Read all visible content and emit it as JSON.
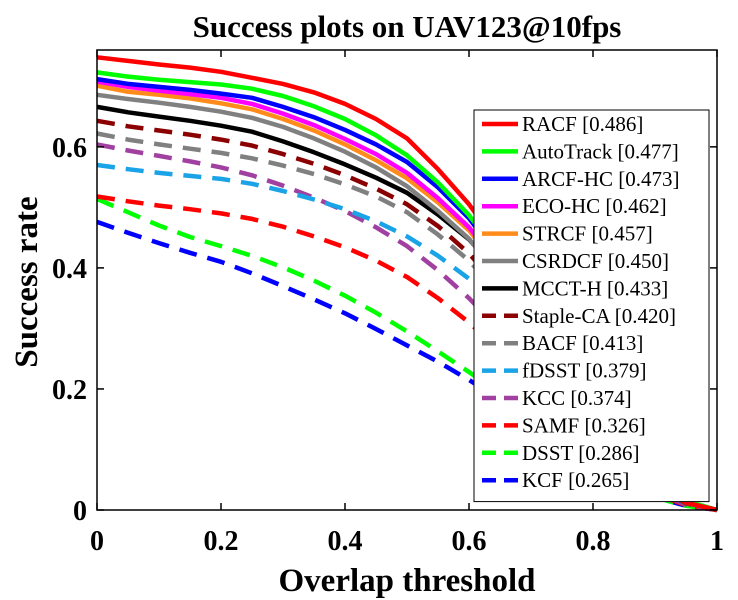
{
  "chart_data": {
    "type": "line",
    "title": "Success plots on UAV123@10fps",
    "xlabel": "Overlap threshold",
    "ylabel": "Success rate",
    "xlim": [
      0,
      1
    ],
    "ylim": [
      0,
      0.76
    ],
    "xticks": [
      {
        "value": 0,
        "label": "0"
      },
      {
        "value": 0.2,
        "label": "0.2"
      },
      {
        "value": 0.4,
        "label": "0.4"
      },
      {
        "value": 0.6,
        "label": "0.6"
      },
      {
        "value": 0.8,
        "label": "0.8"
      },
      {
        "value": 1,
        "label": "1"
      }
    ],
    "yticks": [
      {
        "value": 0,
        "label": "0"
      },
      {
        "value": 0.2,
        "label": "0.2"
      },
      {
        "value": 0.4,
        "label": "0.4"
      },
      {
        "value": 0.6,
        "label": "0.6"
      }
    ],
    "grid": false,
    "legend_position": "right",
    "x": [
      0,
      0.05,
      0.1,
      0.15,
      0.2,
      0.25,
      0.3,
      0.35,
      0.4,
      0.45,
      0.5,
      0.55,
      0.6,
      0.65,
      0.7,
      0.75,
      0.8,
      0.85,
      0.9,
      0.95,
      1.0
    ],
    "series": [
      {
        "name": "RACF [0.486]",
        "color": "#ff0000",
        "dash": "solid",
        "values": [
          0.748,
          0.742,
          0.736,
          0.731,
          0.724,
          0.714,
          0.704,
          0.69,
          0.671,
          0.646,
          0.614,
          0.563,
          0.505,
          0.435,
          0.35,
          0.26,
          0.17,
          0.095,
          0.04,
          0.012,
          0.0
        ]
      },
      {
        "name": "AutoTrack [0.477]",
        "color": "#00ff00",
        "dash": "solid",
        "values": [
          0.723,
          0.716,
          0.711,
          0.707,
          0.703,
          0.696,
          0.684,
          0.667,
          0.646,
          0.619,
          0.586,
          0.541,
          0.487,
          0.42,
          0.34,
          0.255,
          0.17,
          0.098,
          0.045,
          0.015,
          0.0
        ]
      },
      {
        "name": "ARCF-HC [0.473]",
        "color": "#0000ff",
        "dash": "solid",
        "values": [
          0.712,
          0.704,
          0.699,
          0.694,
          0.688,
          0.681,
          0.666,
          0.649,
          0.628,
          0.604,
          0.575,
          0.533,
          0.482,
          0.415,
          0.335,
          0.25,
          0.165,
          0.095,
          0.043,
          0.014,
          0.0
        ]
      },
      {
        "name": "ECO-HC [0.462]",
        "color": "#ff00ff",
        "dash": "solid",
        "values": [
          0.708,
          0.699,
          0.693,
          0.687,
          0.681,
          0.671,
          0.655,
          0.636,
          0.613,
          0.588,
          0.557,
          0.515,
          0.467,
          0.403,
          0.325,
          0.243,
          0.16,
          0.092,
          0.042,
          0.013,
          0.0
        ]
      },
      {
        "name": "STRCF [0.457]",
        "color": "#ff8c1a",
        "dash": "solid",
        "values": [
          0.701,
          0.691,
          0.686,
          0.68,
          0.672,
          0.662,
          0.646,
          0.627,
          0.604,
          0.578,
          0.548,
          0.508,
          0.462,
          0.398,
          0.32,
          0.238,
          0.157,
          0.09,
          0.04,
          0.013,
          0.0
        ]
      },
      {
        "name": "CSRDCF [0.450]",
        "color": "#808080",
        "dash": "solid",
        "values": [
          0.686,
          0.679,
          0.673,
          0.666,
          0.658,
          0.648,
          0.633,
          0.614,
          0.592,
          0.566,
          0.535,
          0.494,
          0.448,
          0.385,
          0.312,
          0.232,
          0.152,
          0.087,
          0.039,
          0.012,
          0.0
        ]
      },
      {
        "name": "MCCT-H [0.433]",
        "color": "#000000",
        "dash": "solid",
        "values": [
          0.666,
          0.657,
          0.65,
          0.643,
          0.635,
          0.625,
          0.609,
          0.591,
          0.571,
          0.549,
          0.524,
          0.488,
          0.447,
          0.39,
          0.318,
          0.238,
          0.158,
          0.09,
          0.04,
          0.012,
          0.0
        ]
      },
      {
        "name": "Staple-CA [0.420]",
        "color": "#8b0000",
        "dash": "dashed",
        "values": [
          0.643,
          0.634,
          0.627,
          0.62,
          0.612,
          0.602,
          0.588,
          0.572,
          0.553,
          0.531,
          0.505,
          0.469,
          0.424,
          0.365,
          0.295,
          0.22,
          0.145,
          0.083,
          0.037,
          0.011,
          0.0
        ]
      },
      {
        "name": "BACF [0.413]",
        "color": "#808080",
        "dash": "dashed",
        "values": [
          0.622,
          0.612,
          0.604,
          0.597,
          0.59,
          0.581,
          0.569,
          0.555,
          0.538,
          0.518,
          0.492,
          0.455,
          0.412,
          0.355,
          0.287,
          0.214,
          0.141,
          0.081,
          0.036,
          0.011,
          0.0
        ]
      },
      {
        "name": "fDSST [0.379]",
        "color": "#1aa3e6",
        "dash": "dashed",
        "values": [
          0.57,
          0.563,
          0.557,
          0.552,
          0.547,
          0.539,
          0.527,
          0.513,
          0.497,
          0.477,
          0.452,
          0.42,
          0.382,
          0.332,
          0.272,
          0.205,
          0.137,
          0.079,
          0.035,
          0.011,
          0.0
        ]
      },
      {
        "name": "KCC [0.374]",
        "color": "#a040a0",
        "dash": "dashed",
        "values": [
          0.604,
          0.594,
          0.585,
          0.576,
          0.566,
          0.553,
          0.536,
          0.516,
          0.494,
          0.467,
          0.436,
          0.396,
          0.35,
          0.297,
          0.238,
          0.176,
          0.116,
          0.066,
          0.029,
          0.009,
          0.0
        ]
      },
      {
        "name": "SAMF [0.326]",
        "color": "#ff0000",
        "dash": "dashed",
        "values": [
          0.518,
          0.51,
          0.503,
          0.497,
          0.49,
          0.481,
          0.468,
          0.452,
          0.434,
          0.412,
          0.385,
          0.35,
          0.31,
          0.263,
          0.211,
          0.157,
          0.104,
          0.059,
          0.026,
          0.008,
          0.0
        ]
      },
      {
        "name": "DSST [0.286]",
        "color": "#00ff00",
        "dash": "dashed",
        "values": [
          0.514,
          0.492,
          0.47,
          0.451,
          0.436,
          0.42,
          0.401,
          0.379,
          0.354,
          0.326,
          0.295,
          0.262,
          0.228,
          0.192,
          0.155,
          0.117,
          0.08,
          0.047,
          0.021,
          0.007,
          0.0
        ]
      },
      {
        "name": "KCF [0.265]",
        "color": "#0000ff",
        "dash": "dashed",
        "values": [
          0.476,
          0.458,
          0.441,
          0.425,
          0.41,
          0.391,
          0.37,
          0.348,
          0.325,
          0.299,
          0.272,
          0.245,
          0.215,
          0.182,
          0.148,
          0.113,
          0.078,
          0.046,
          0.021,
          0.007,
          0.0
        ]
      }
    ]
  }
}
